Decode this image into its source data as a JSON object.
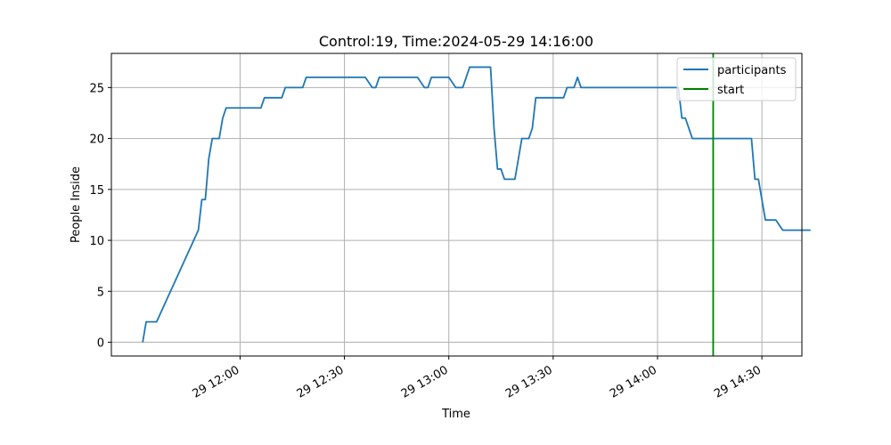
{
  "chart_data": {
    "type": "line",
    "title": "Control:19, Time:2024-05-29 14:16:00",
    "xlabel": "Time",
    "ylabel": "People Inside",
    "xlim_minutes": [
      683,
      881.5
    ],
    "ylim": [
      -1.35,
      28.35
    ],
    "grid": true,
    "legend_position": "upper right",
    "x_ticks": [
      {
        "minutes": 720,
        "label": "29 12:00"
      },
      {
        "minutes": 750,
        "label": "29 12:30"
      },
      {
        "minutes": 780,
        "label": "29 13:00"
      },
      {
        "minutes": 810,
        "label": "29 13:30"
      },
      {
        "minutes": 840,
        "label": "29 14:00"
      },
      {
        "minutes": 870,
        "label": "29 14:30"
      }
    ],
    "y_ticks": [
      {
        "value": 0,
        "label": "0"
      },
      {
        "value": 5,
        "label": "5"
      },
      {
        "value": 10,
        "label": "10"
      },
      {
        "value": 15,
        "label": "15"
      },
      {
        "value": 20,
        "label": "20"
      },
      {
        "value": 25,
        "label": "25"
      }
    ],
    "series": [
      {
        "name": "participants",
        "color": "#1f77b4",
        "points": [
          [
            692,
            0
          ],
          [
            693,
            2
          ],
          [
            696,
            2
          ],
          [
            708,
            11
          ],
          [
            709,
            14
          ],
          [
            710,
            14
          ],
          [
            711,
            18
          ],
          [
            712,
            20
          ],
          [
            714,
            20
          ],
          [
            715,
            22
          ],
          [
            716,
            23
          ],
          [
            726,
            23
          ],
          [
            727,
            24
          ],
          [
            732,
            24
          ],
          [
            733,
            25
          ],
          [
            738,
            25
          ],
          [
            739,
            26
          ],
          [
            756,
            26
          ],
          [
            758,
            25
          ],
          [
            759,
            25
          ],
          [
            760,
            26
          ],
          [
            771,
            26
          ],
          [
            773,
            25
          ],
          [
            774,
            25
          ],
          [
            775,
            26
          ],
          [
            780,
            26
          ],
          [
            782,
            25
          ],
          [
            784,
            25
          ],
          [
            786,
            27
          ],
          [
            792,
            27
          ],
          [
            793,
            21
          ],
          [
            794,
            17
          ],
          [
            795,
            17
          ],
          [
            796,
            16
          ],
          [
            799,
            16
          ],
          [
            801,
            20
          ],
          [
            803,
            20
          ],
          [
            804,
            21
          ],
          [
            805,
            24
          ],
          [
            813,
            24
          ],
          [
            814,
            25
          ],
          [
            816,
            25
          ],
          [
            817,
            26
          ],
          [
            818,
            25
          ],
          [
            837,
            25
          ],
          [
            846,
            25
          ],
          [
            847,
            22
          ],
          [
            848,
            22
          ],
          [
            850,
            20
          ],
          [
            862,
            20
          ],
          [
            867,
            20
          ],
          [
            868,
            16
          ],
          [
            869,
            16
          ],
          [
            871,
            12
          ],
          [
            874,
            12
          ],
          [
            876,
            11
          ],
          [
            884,
            11
          ]
        ]
      }
    ],
    "vline": {
      "name": "start",
      "minutes": 856,
      "color": "#008000"
    }
  }
}
